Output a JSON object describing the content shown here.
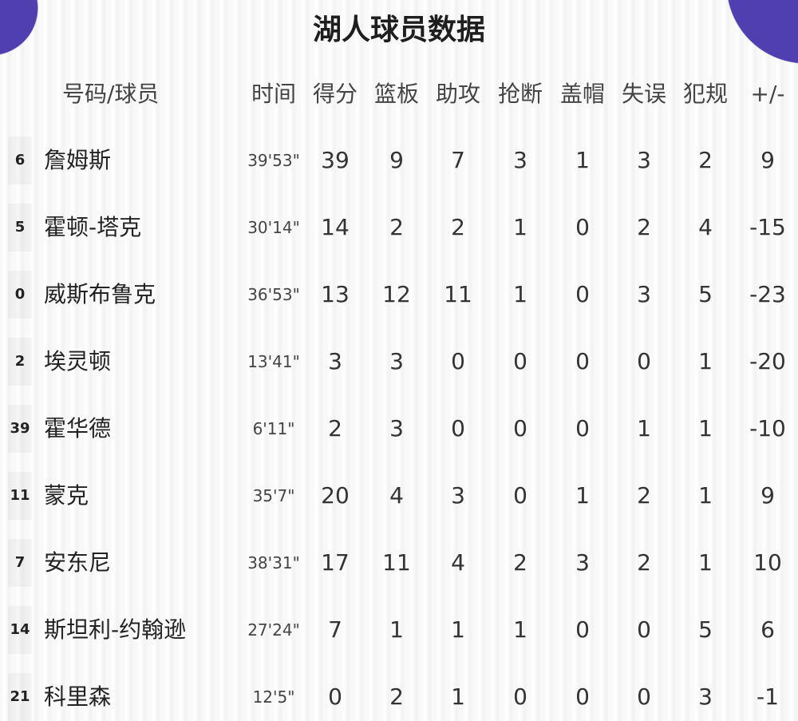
{
  "title": "湖人球员数据",
  "colors": {
    "accent": "#4f3fb0"
  },
  "headers": {
    "player": "号码/球员",
    "time": "时间",
    "pts": "得分",
    "reb": "篮板",
    "ast": "助攻",
    "stl": "抢断",
    "blk": "盖帽",
    "tov": "失误",
    "pf": "犯规",
    "pm": "+/-"
  },
  "players": [
    {
      "num": "6",
      "name": "詹姆斯",
      "time": "39'53\"",
      "pts": "39",
      "reb": "9",
      "ast": "7",
      "stl": "3",
      "blk": "1",
      "tov": "3",
      "pf": "2",
      "pm": "9"
    },
    {
      "num": "5",
      "name": "霍顿-塔克",
      "time": "30'14\"",
      "pts": "14",
      "reb": "2",
      "ast": "2",
      "stl": "1",
      "blk": "0",
      "tov": "2",
      "pf": "4",
      "pm": "-15"
    },
    {
      "num": "0",
      "name": "威斯布鲁克",
      "time": "36'53\"",
      "pts": "13",
      "reb": "12",
      "ast": "11",
      "stl": "1",
      "blk": "0",
      "tov": "3",
      "pf": "5",
      "pm": "-23"
    },
    {
      "num": "2",
      "name": "埃灵顿",
      "time": "13'41\"",
      "pts": "3",
      "reb": "3",
      "ast": "0",
      "stl": "0",
      "blk": "0",
      "tov": "0",
      "pf": "1",
      "pm": "-20"
    },
    {
      "num": "39",
      "name": "霍华德",
      "time": "6'11\"",
      "pts": "2",
      "reb": "3",
      "ast": "0",
      "stl": "0",
      "blk": "0",
      "tov": "1",
      "pf": "1",
      "pm": "-10"
    },
    {
      "num": "11",
      "name": "蒙克",
      "time": "35'7\"",
      "pts": "20",
      "reb": "4",
      "ast": "3",
      "stl": "0",
      "blk": "1",
      "tov": "2",
      "pf": "1",
      "pm": "9"
    },
    {
      "num": "7",
      "name": "安东尼",
      "time": "38'31\"",
      "pts": "17",
      "reb": "11",
      "ast": "4",
      "stl": "2",
      "blk": "3",
      "tov": "2",
      "pf": "1",
      "pm": "10"
    },
    {
      "num": "14",
      "name": "斯坦利-约翰逊",
      "time": "27'24\"",
      "pts": "7",
      "reb": "1",
      "ast": "1",
      "stl": "1",
      "blk": "0",
      "tov": "0",
      "pf": "5",
      "pm": "6"
    },
    {
      "num": "21",
      "name": "科里森",
      "time": "12'5\"",
      "pts": "0",
      "reb": "2",
      "ast": "1",
      "stl": "0",
      "blk": "0",
      "tov": "0",
      "pf": "3",
      "pm": "-1"
    }
  ]
}
